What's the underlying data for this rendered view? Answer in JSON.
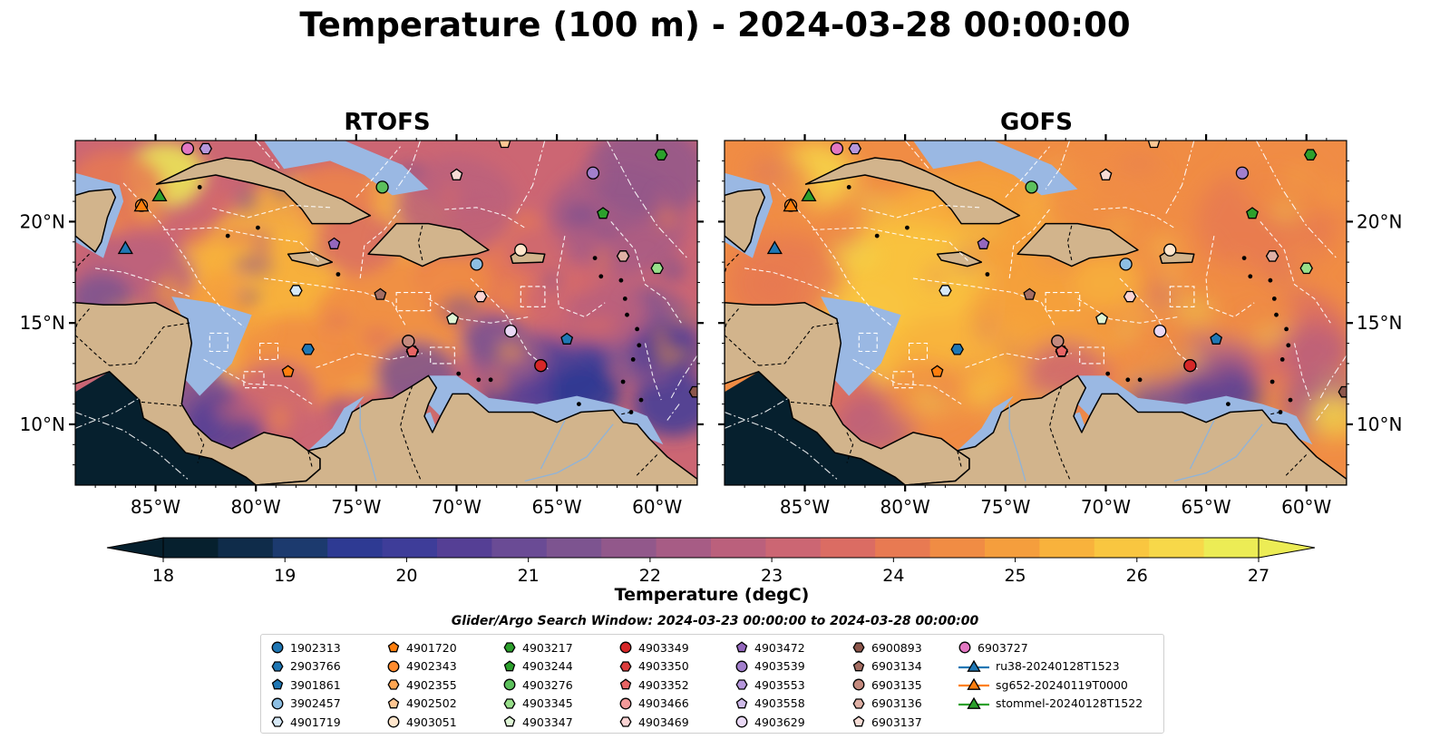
{
  "title": "Temperature (100 m) - 2024-03-28 00:00:00",
  "panels": [
    {
      "name": "RTOFS"
    },
    {
      "name": "GOFS"
    }
  ],
  "map_extent": {
    "lon_min": -89,
    "lon_max": -58,
    "lat_min": 7,
    "lat_max": 24
  },
  "axes": {
    "lon_ticks": [
      "85°W",
      "80°W",
      "75°W",
      "70°W",
      "65°W",
      "60°W"
    ],
    "lat_ticks": [
      "10°N",
      "15°N",
      "20°N"
    ]
  },
  "colors": {
    "land": "#d2b48c",
    "shallow_water": "#9ab8e3",
    "deep_outside": "#06202e",
    "colormap": [
      "#06202e",
      "#0f2c4a",
      "#1c3a6e",
      "#2e3a93",
      "#3e3d99",
      "#553f95",
      "#6a4b95",
      "#7d5490",
      "#92588b",
      "#a75c85",
      "#bb607c",
      "#cc6673",
      "#db6c63",
      "#e87a52",
      "#f08c44",
      "#f59e3d",
      "#f8b23c",
      "#f9c640",
      "#f7d849",
      "#ecec55"
    ]
  },
  "colorbar": {
    "ticks": [
      "18",
      "19",
      "20",
      "21",
      "22",
      "23",
      "24",
      "25",
      "26",
      "27"
    ],
    "label": "Temperature (degC)"
  },
  "search_window": "Glider/Argo Search Window: 2024-03-23 00:00:00 to 2024-03-28 00:00:00",
  "legend": [
    {
      "label": "1902313",
      "marker": "circle",
      "color": "#1f77b4"
    },
    {
      "label": "2903766",
      "marker": "hexagon",
      "color": "#1f77b4"
    },
    {
      "label": "3901861",
      "marker": "pentagon",
      "color": "#1f77b4"
    },
    {
      "label": "3902457",
      "marker": "circle",
      "color": "#8dbfe3"
    },
    {
      "label": "4901719",
      "marker": "hexagon",
      "color": "#d7e9f7"
    },
    {
      "label": "4901720",
      "marker": "pentagon",
      "color": "#ff7f0e"
    },
    {
      "label": "4902343",
      "marker": "circle",
      "color": "#ff8c2e"
    },
    {
      "label": "4902355",
      "marker": "hexagon",
      "color": "#ffa652"
    },
    {
      "label": "4902502",
      "marker": "pentagon",
      "color": "#ffc793"
    },
    {
      "label": "4903051",
      "marker": "circle",
      "color": "#ffe6cc"
    },
    {
      "label": "4903217",
      "marker": "hexagon",
      "color": "#2ca02c"
    },
    {
      "label": "4903244",
      "marker": "pentagon",
      "color": "#2ca02c"
    },
    {
      "label": "4903276",
      "marker": "circle",
      "color": "#5cc05c"
    },
    {
      "label": "4903345",
      "marker": "hexagon",
      "color": "#98df8a"
    },
    {
      "label": "4903347",
      "marker": "pentagon",
      "color": "#dff5d6"
    },
    {
      "label": "4903349",
      "marker": "circle",
      "color": "#d62728"
    },
    {
      "label": "4903350",
      "marker": "hexagon",
      "color": "#dc3c3c"
    },
    {
      "label": "4903352",
      "marker": "pentagon",
      "color": "#e86464"
    },
    {
      "label": "4903466",
      "marker": "circle",
      "color": "#f29a9a"
    },
    {
      "label": "4903469",
      "marker": "hexagon",
      "color": "#fbd4d4"
    },
    {
      "label": "4903472",
      "marker": "pentagon",
      "color": "#9467bd"
    },
    {
      "label": "4903539",
      "marker": "circle",
      "color": "#a27fcc"
    },
    {
      "label": "4903553",
      "marker": "hexagon",
      "color": "#b697dc"
    },
    {
      "label": "4903558",
      "marker": "pentagon",
      "color": "#cfbbe9"
    },
    {
      "label": "4903629",
      "marker": "circle",
      "color": "#ead9f6"
    },
    {
      "label": "6900893",
      "marker": "hexagon",
      "color": "#8c564b"
    },
    {
      "label": "6903134",
      "marker": "pentagon",
      "color": "#a46d62"
    },
    {
      "label": "6903135",
      "marker": "circle",
      "color": "#c48a7e"
    },
    {
      "label": "6903136",
      "marker": "hexagon",
      "color": "#dfb0a5"
    },
    {
      "label": "6903137",
      "marker": "pentagon",
      "color": "#f6dcd5"
    },
    {
      "label": "6903727",
      "marker": "circle",
      "color": "#e377c2"
    },
    {
      "label": "ru38-20240128T1523",
      "marker": "triangle-line",
      "color": "#1f77b4"
    },
    {
      "label": "sg652-20240119T0000",
      "marker": "triangle-line",
      "color": "#ff7f0e"
    },
    {
      "label": "stommel-20240128T1522",
      "marker": "triangle-line",
      "color": "#2ca02c"
    }
  ],
  "floats": [
    {
      "label": "1902313",
      "lon": -65.8,
      "lat": 12.9
    },
    {
      "label": "2903766",
      "lon": -77.4,
      "lat": 13.7
    },
    {
      "label": "3901861",
      "lon": -64.5,
      "lat": 14.2
    },
    {
      "label": "3902457",
      "lon": -69.0,
      "lat": 17.9
    },
    {
      "label": "4901719",
      "lon": -78.0,
      "lat": 16.6
    },
    {
      "label": "4901720",
      "lon": -78.4,
      "lat": 12.6
    },
    {
      "label": "4902343",
      "lon": -85.7,
      "lat": 20.8
    },
    {
      "label": "4902355",
      "lon": -61.7,
      "lat": 18.3
    },
    {
      "label": "4902502",
      "lon": -67.6,
      "lat": 23.9
    },
    {
      "label": "4903051",
      "lon": -66.8,
      "lat": 18.6
    },
    {
      "label": "4903217",
      "lon": -59.8,
      "lat": 23.3
    },
    {
      "label": "4903244",
      "lon": -62.7,
      "lat": 20.4
    },
    {
      "label": "4903276",
      "lon": -73.7,
      "lat": 21.7
    },
    {
      "label": "4903345",
      "lon": -60.0,
      "lat": 17.7
    },
    {
      "label": "4903347",
      "lon": -70.2,
      "lat": 15.2
    },
    {
      "label": "4903349",
      "lon": -65.8,
      "lat": 12.9
    },
    {
      "label": "4903350",
      "lon": -72.2,
      "lat": 13.6
    },
    {
      "label": "4903352",
      "lon": -72.2,
      "lat": 13.6
    },
    {
      "label": "4903466",
      "lon": -72.4,
      "lat": 14.1
    },
    {
      "label": "4903469",
      "lon": -68.8,
      "lat": 16.3
    },
    {
      "label": "4903472",
      "lon": -76.1,
      "lat": 18.9
    },
    {
      "label": "4903539",
      "lon": -63.2,
      "lat": 22.4
    },
    {
      "label": "4903553",
      "lon": -82.5,
      "lat": 23.6
    },
    {
      "label": "4903558",
      "lon": -70.0,
      "lat": 22.3
    },
    {
      "label": "4903629",
      "lon": -67.3,
      "lat": 14.6
    },
    {
      "label": "6900893",
      "lon": -58.1,
      "lat": 11.6
    },
    {
      "label": "6903134",
      "lon": -73.8,
      "lat": 16.4
    },
    {
      "label": "6903135",
      "lon": -72.4,
      "lat": 14.1
    },
    {
      "label": "6903136",
      "lon": -61.7,
      "lat": 18.3
    },
    {
      "label": "6903137",
      "lon": -70.0,
      "lat": 22.3
    },
    {
      "label": "6903727",
      "lon": -83.4,
      "lat": 23.6
    }
  ],
  "gliders": [
    {
      "label": "ru38-20240128T1523",
      "lon": -86.5,
      "lat": 18.7
    },
    {
      "label": "sg652-20240119T0000",
      "lon": -85.7,
      "lat": 20.8
    },
    {
      "label": "stommel-20240128T1522",
      "lon": -84.8,
      "lat": 21.3
    }
  ]
}
